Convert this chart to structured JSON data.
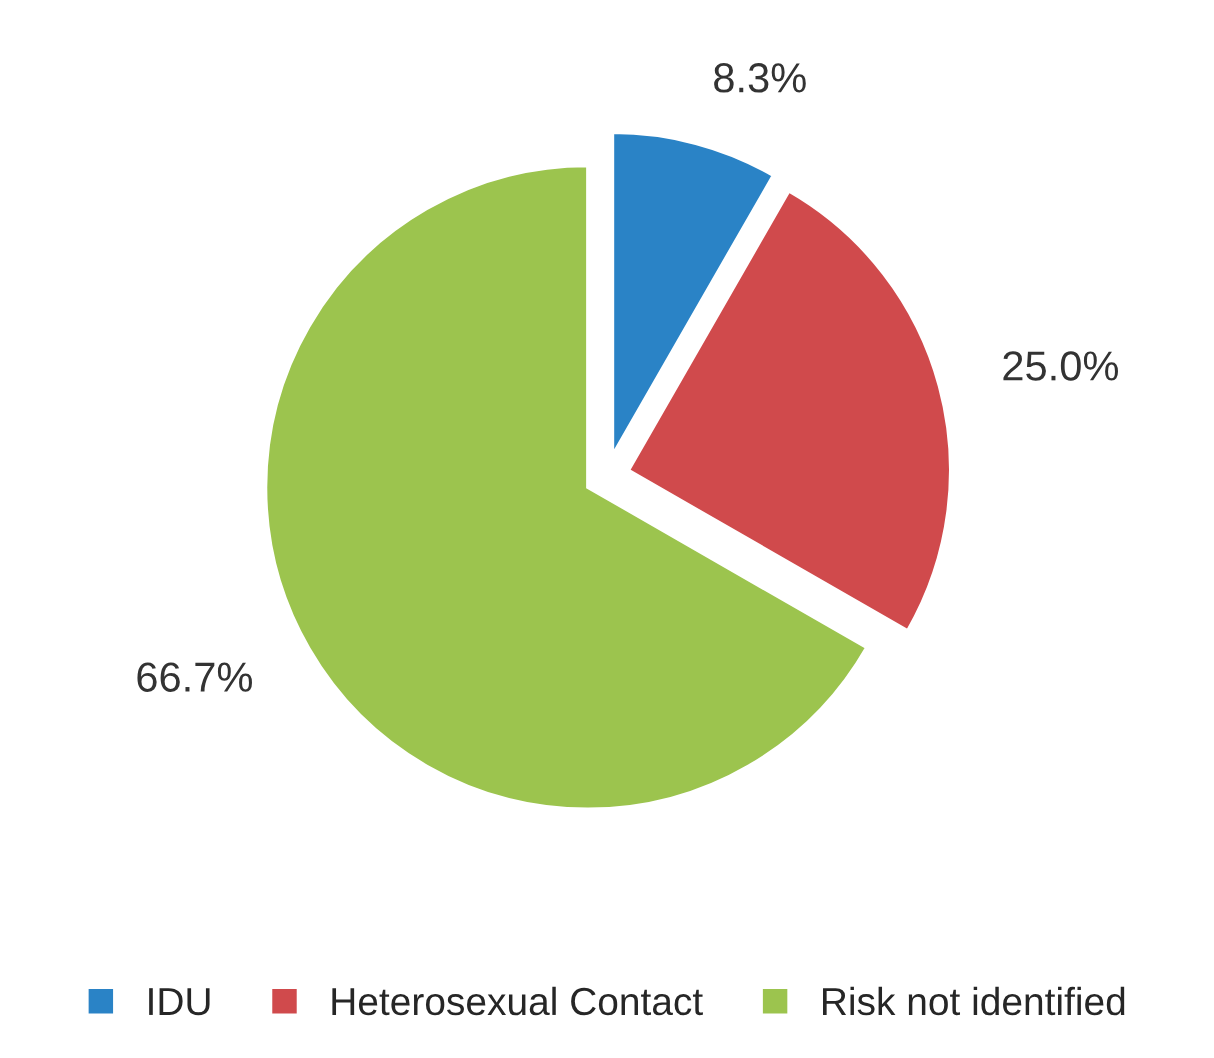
{
  "chart_data": {
    "type": "pie",
    "categories": [
      "IDU",
      "Heterosexual Contact",
      "Risk not identified"
    ],
    "values": [
      8.3,
      25.0,
      66.7
    ],
    "colors": [
      "#2a83c6",
      "#d04a4c",
      "#9cc44e"
    ],
    "value_labels": [
      "8.3%",
      "25.0%",
      "66.7%"
    ],
    "legend": "bottom"
  }
}
